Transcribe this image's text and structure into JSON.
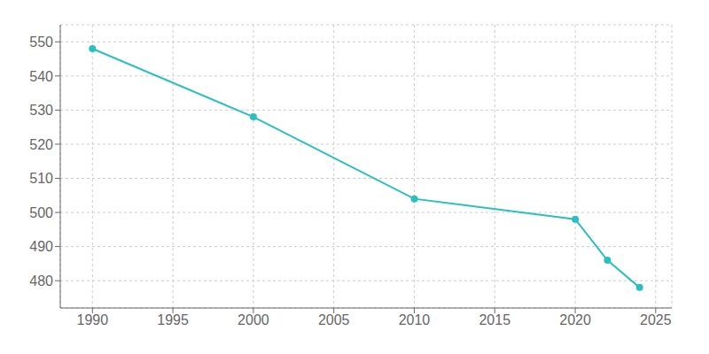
{
  "chart_data": {
    "type": "line",
    "x": [
      1990,
      2000,
      2010,
      2020,
      2022,
      2024
    ],
    "values": [
      548,
      528,
      504,
      498,
      486,
      478
    ],
    "color": "#2bbfc0",
    "marker": "circle",
    "xlim": [
      1988,
      2026
    ],
    "ylim": [
      472,
      555
    ],
    "xticks": [
      1990,
      1995,
      2000,
      2005,
      2010,
      2015,
      2020,
      2025
    ],
    "yticks": [
      480,
      490,
      500,
      510,
      520,
      530,
      540,
      550
    ],
    "grid": true
  }
}
